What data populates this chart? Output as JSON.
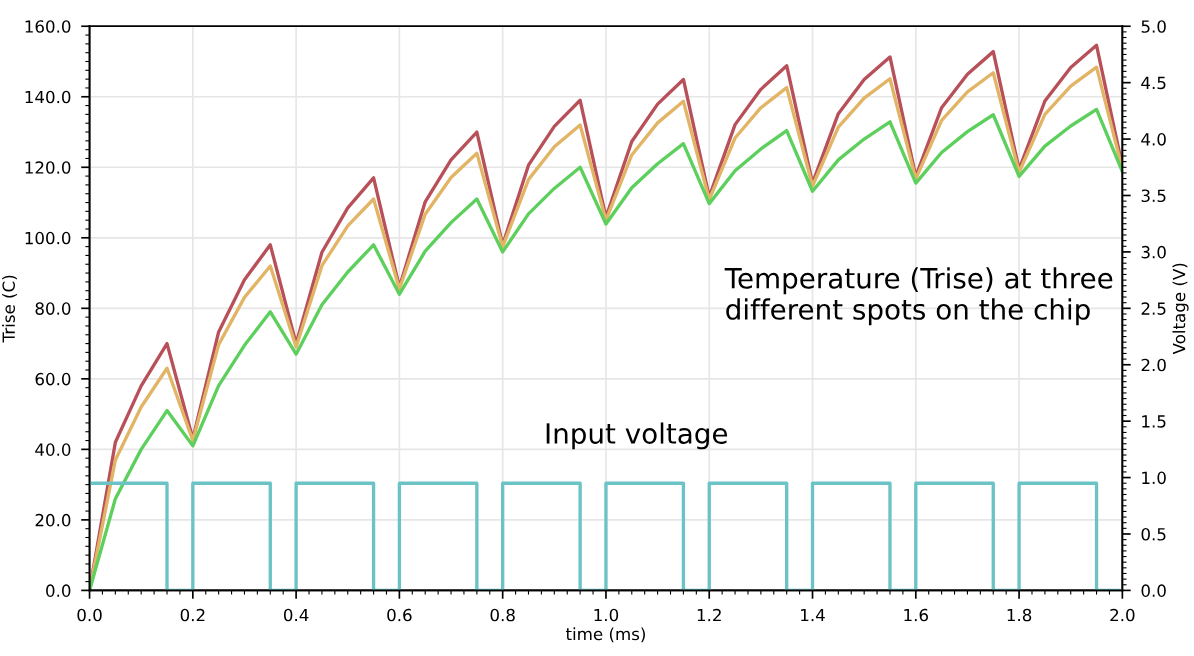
{
  "chart_data": {
    "type": "line",
    "xlabel": "time (ms)",
    "ylabel": "Trise (C)",
    "y2label": "Voltage (V)",
    "x": [
      0,
      0.05,
      0.1,
      0.15,
      0.2,
      0.25,
      0.3,
      0.35,
      0.4,
      0.45,
      0.5,
      0.55,
      0.6,
      0.65,
      0.7,
      0.75,
      0.8,
      0.85,
      0.9,
      0.95,
      1.0,
      1.05,
      1.1,
      1.15,
      1.2,
      1.25,
      1.3,
      1.35,
      1.4,
      1.45,
      1.5,
      1.55,
      1.6,
      1.65,
      1.7,
      1.75,
      1.8,
      1.85,
      1.9,
      1.95,
      2.0
    ],
    "series": [
      {
        "color": "#b8505a",
        "values": [
          0,
          42,
          58,
          70,
          43,
          73.3,
          88.1,
          98,
          70,
          95.9,
          108.5,
          117,
          86,
          110.2,
          122.1,
          130,
          98,
          120.6,
          131.6,
          139,
          105.8,
          127.3,
          137.9,
          144.9,
          111.6,
          132.1,
          142.1,
          148.8,
          115.5,
          135.2,
          144.9,
          151.3,
          117.4,
          136.9,
          146.4,
          152.8,
          119.4,
          138.8,
          148.3,
          154.6,
          120.3
        ]
      },
      {
        "color": "#e2b466",
        "values": [
          0,
          37,
          52,
          63,
          42.5,
          69.7,
          83.1,
          92,
          69,
          92.1,
          103.4,
          111,
          85.5,
          106.7,
          117.1,
          124,
          97.5,
          116.5,
          125.8,
          132,
          105,
          123.5,
          132.6,
          138.7,
          110.8,
          128.3,
          136.9,
          142.6,
          114.7,
          131.4,
          139.6,
          145.1,
          116.7,
          133.3,
          141.4,
          146.8,
          118.6,
          135.0,
          143.0,
          148.4,
          119.5
        ]
      },
      {
        "color": "#5ccf5c",
        "values": [
          0,
          26,
          40,
          51,
          41,
          58.1,
          69.5,
          79,
          67,
          81.0,
          90.3,
          98,
          84,
          96.2,
          104.3,
          111,
          96,
          106.8,
          114.0,
          120,
          103.9,
          114.2,
          121.0,
          126.7,
          109.7,
          119.0,
          125.2,
          130.4,
          113.2,
          122.1,
          128.0,
          132.9,
          115.5,
          124.2,
          130.1,
          134.9,
          117.4,
          126.0,
          131.7,
          136.4,
          118.8
        ]
      },
      {
        "type": "step",
        "axis": "y2",
        "color": "#6cc3c6",
        "x": [
          0,
          0.15,
          0.2,
          0.35,
          0.4,
          0.55,
          0.6,
          0.75,
          0.8,
          0.95,
          1.0,
          1.15,
          1.2,
          1.35,
          1.4,
          1.55,
          1.6,
          1.75,
          1.8,
          1.95,
          2.0
        ],
        "values": [
          0.95,
          0,
          0.95,
          0,
          0.95,
          0,
          0.95,
          0,
          0.95,
          0,
          0.95,
          0,
          0.95,
          0,
          0.95,
          0,
          0.95,
          0,
          0.95,
          0,
          0
        ]
      }
    ],
    "xlim": [
      0,
      2.0
    ],
    "xticks": [
      {
        "value": 0,
        "label": "0.0"
      },
      {
        "value": 0.2,
        "label": "0.2"
      },
      {
        "value": 0.4,
        "label": "0.4"
      },
      {
        "value": 0.6,
        "label": "0.6"
      },
      {
        "value": 0.8,
        "label": "0.8"
      },
      {
        "value": 1.0,
        "label": "1.0"
      },
      {
        "value": 1.2,
        "label": "1.2"
      },
      {
        "value": 1.4,
        "label": "1.4"
      },
      {
        "value": 1.6,
        "label": "1.6"
      },
      {
        "value": 1.8,
        "label": "1.8"
      },
      {
        "value": 2.0,
        "label": "2.0"
      }
    ],
    "ylim": [
      0,
      160
    ],
    "yticks": [
      {
        "value": 0,
        "label": "0.0"
      },
      {
        "value": 20,
        "label": "20.0"
      },
      {
        "value": 40,
        "label": "40.0"
      },
      {
        "value": 60,
        "label": "60.0"
      },
      {
        "value": 80,
        "label": "80.0"
      },
      {
        "value": 100,
        "label": "100.0"
      },
      {
        "value": 120,
        "label": "120.0"
      },
      {
        "value": 140,
        "label": "140.0"
      },
      {
        "value": 160,
        "label": "160.0"
      }
    ],
    "y2lim": [
      0,
      5
    ],
    "y2ticks": [
      {
        "value": 0,
        "label": "0.0"
      },
      {
        "value": 0.5,
        "label": "0.5"
      },
      {
        "value": 1,
        "label": "1.0"
      },
      {
        "value": 1.5,
        "label": "1.5"
      },
      {
        "value": 2,
        "label": "2.0"
      },
      {
        "value": 2.5,
        "label": "2.5"
      },
      {
        "value": 3,
        "label": "3.0"
      },
      {
        "value": 3.5,
        "label": "3.5"
      },
      {
        "value": 4,
        "label": "4.0"
      },
      {
        "value": 4.5,
        "label": "4.5"
      },
      {
        "value": 5,
        "label": "5.0"
      }
    ],
    "grid": true,
    "legend": false,
    "annotations": [
      "Temperature (Trise) at three different spots on the chip",
      "Input voltage"
    ]
  }
}
